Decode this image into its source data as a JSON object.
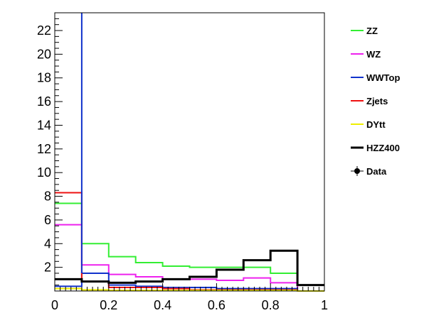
{
  "chart_data": {
    "type": "line",
    "x_bin_edges": [
      0,
      0.1,
      0.2,
      0.3,
      0.4,
      0.5,
      0.6,
      0.7,
      0.8,
      0.9,
      1.0
    ],
    "xlim": [
      0,
      1
    ],
    "ylim": [
      0,
      23.5
    ],
    "x_ticks": [
      0,
      0.2,
      0.4,
      0.6,
      0.8,
      1
    ],
    "x_tick_labels": [
      "0",
      "0.2",
      "0.4",
      "0.6",
      "0.8",
      "1"
    ],
    "y_ticks": [
      2,
      4,
      6,
      8,
      10,
      12,
      14,
      16,
      18,
      20,
      22
    ],
    "y_tick_labels": [
      "2",
      "4",
      "6",
      "8",
      "10",
      "12",
      "14",
      "16",
      "18",
      "20",
      "22"
    ],
    "grid": false,
    "legend_position": "right",
    "series": [
      {
        "name": "ZZ",
        "color": "#33ee33",
        "width": 2,
        "values": [
          7.4,
          4.0,
          2.9,
          2.4,
          2.1,
          2.0,
          2.0,
          2.0,
          1.5,
          0.0
        ]
      },
      {
        "name": "WZ",
        "color": "#ee22ee",
        "width": 2,
        "values": [
          5.6,
          2.2,
          1.4,
          1.2,
          1.0,
          1.0,
          0.9,
          1.1,
          0.7,
          0.0
        ]
      },
      {
        "name": "WWTop",
        "color": "#1133cc",
        "width": 2,
        "values": [
          0.4,
          1.5,
          0.5,
          0.4,
          0.3,
          0.3,
          0.2,
          0.2,
          0.2,
          0.0
        ]
      },
      {
        "name": "Zjets",
        "color": "#ee1111",
        "width": 2,
        "values": [
          8.3,
          0.8,
          0.3,
          0.3,
          0.2,
          0.1,
          0.1,
          0.1,
          0.1,
          0.0
        ]
      },
      {
        "name": "DYtt",
        "color": "#eeee00",
        "width": 2,
        "values": [
          0.2,
          0.1,
          0.05,
          0.05,
          0.05,
          0.05,
          0.05,
          0.05,
          0.05,
          0.0
        ]
      },
      {
        "name": "HZZ400",
        "color": "#000000",
        "width": 3,
        "values": [
          1.0,
          0.8,
          0.7,
          0.8,
          1.0,
          1.2,
          1.8,
          2.6,
          3.4,
          0.5
        ]
      }
    ],
    "wwtop_spike_top": 23.5,
    "legend": [
      {
        "label": "ZZ",
        "color": "#33ee33",
        "marker": "line"
      },
      {
        "label": "WZ",
        "color": "#ee22ee",
        "marker": "line"
      },
      {
        "label": "WWTop",
        "color": "#1133cc",
        "marker": "line"
      },
      {
        "label": "Zjets",
        "color": "#ee1111",
        "marker": "line"
      },
      {
        "label": "DYtt",
        "color": "#eeee00",
        "marker": "line"
      },
      {
        "label": "HZZ400",
        "color": "#000000",
        "marker": "line-thick"
      },
      {
        "label": "Data",
        "color": "#000000",
        "marker": "point"
      }
    ]
  }
}
